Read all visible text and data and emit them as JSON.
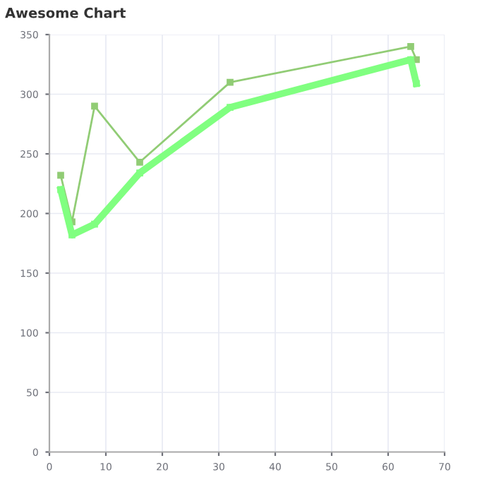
{
  "chart_data": {
    "type": "line",
    "title": "Awesome Chart",
    "series": [
      {
        "color": "#91cc75",
        "x": [
          2,
          4,
          8,
          16,
          32,
          64,
          65
        ],
        "values": [
          232,
          193,
          290,
          243,
          310,
          340,
          329
        ]
      },
      {
        "color": "#80ff80",
        "x": [
          2,
          4,
          8,
          16,
          32,
          64,
          65
        ],
        "values": [
          220,
          182,
          191,
          234,
          289,
          329,
          309
        ]
      }
    ],
    "xlim": [
      0,
      70
    ],
    "xticks": [
      0,
      10,
      20,
      30,
      40,
      50,
      60,
      70
    ],
    "ylim": [
      0,
      350
    ],
    "yticks": [
      0,
      50,
      100,
      150,
      200,
      250,
      300,
      350
    ],
    "grid": true,
    "marker": "square",
    "line_style": "solid"
  }
}
